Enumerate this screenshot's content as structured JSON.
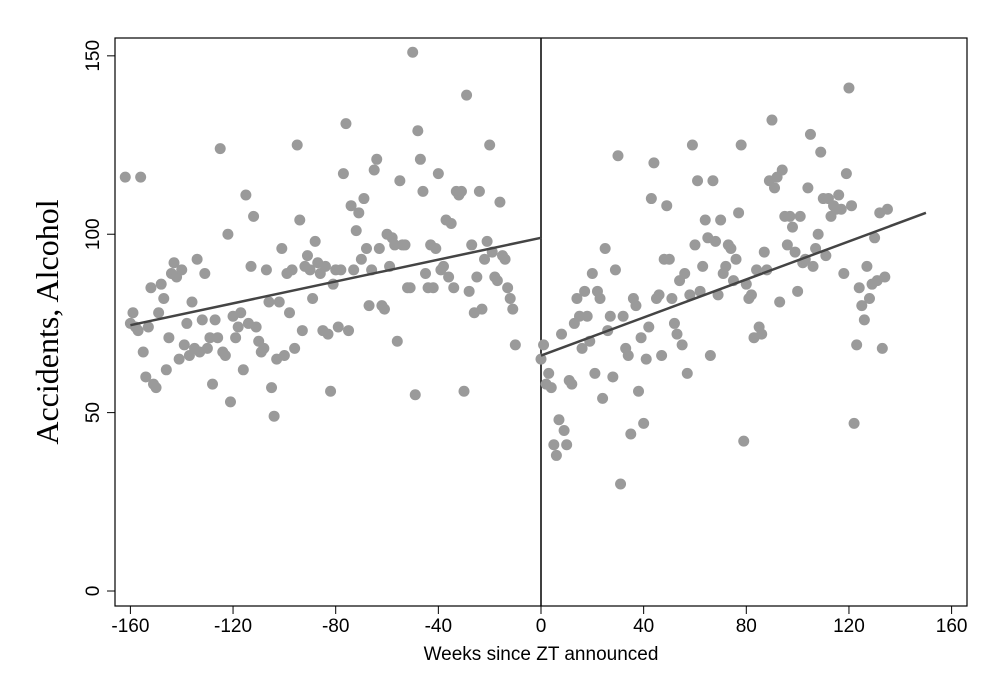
{
  "chart_data": {
    "type": "scatter",
    "x_label": "Weeks since ZT announced",
    "y_label": "Accidents, Alcohol",
    "xlim": [
      -166,
      166
    ],
    "ylim": [
      -4.2,
      155
    ],
    "xticks": [
      -160,
      -120,
      -80,
      -40,
      0,
      40,
      80,
      120,
      160
    ],
    "yticks": [
      0,
      50,
      100,
      150
    ],
    "vline": 0,
    "series": [
      {
        "type": "scatter",
        "color": "#9a9a9a",
        "x": [
          -162,
          -160,
          -159,
          -158,
          -157,
          -156,
          -155,
          -154,
          -153,
          -152,
          -151,
          -150,
          -149,
          -148,
          -147,
          -146,
          -145,
          -144,
          -143,
          -142,
          -141,
          -140,
          -139,
          -138,
          -137,
          -136,
          -135,
          -134,
          -133,
          -132,
          -131,
          -130,
          -129,
          -128,
          -127,
          -126,
          -125,
          -124,
          -123,
          -122,
          -121,
          -120,
          -119,
          -118,
          -117,
          -116,
          -115,
          -114,
          -113,
          -112,
          -111,
          -110,
          -109,
          -108,
          -107,
          -106,
          -105,
          -104,
          -103,
          -102,
          -101,
          -100,
          -99,
          -98,
          -97,
          -96,
          -95,
          -94,
          -93,
          -92,
          -91,
          -90,
          -89,
          -88,
          -87,
          -86,
          -85,
          -84,
          -83,
          -82,
          -81,
          -80,
          -79,
          -78,
          -77,
          -76,
          -75,
          -74,
          -73,
          -72,
          -71,
          -70,
          -69,
          -68,
          -67,
          -66,
          -65,
          -64,
          -63,
          -62,
          -61,
          -60,
          -59,
          -58,
          -57,
          -56,
          -55,
          -54,
          -53,
          -52,
          -51,
          -50,
          -49,
          -48,
          -47,
          -46,
          -45,
          -44,
          -43,
          -42,
          -41,
          -40,
          -39,
          -38,
          -37,
          -36,
          -35,
          -34,
          -33,
          -32,
          -31,
          -30,
          -29,
          -28,
          -27,
          -26,
          -25,
          -24,
          -23,
          -22,
          -21,
          -20,
          -19,
          -18,
          -17,
          -16,
          -15,
          -14,
          -13,
          -12,
          -11,
          -10,
          0,
          1,
          2,
          3,
          4,
          5,
          6,
          7,
          8,
          9,
          10,
          11,
          12,
          13,
          14,
          15,
          16,
          17,
          18,
          19,
          20,
          21,
          22,
          23,
          24,
          25,
          26,
          27,
          28,
          29,
          30,
          31,
          32,
          33,
          34,
          35,
          36,
          37,
          38,
          39,
          40,
          41,
          42,
          43,
          44,
          45,
          46,
          47,
          48,
          49,
          50,
          51,
          52,
          53,
          54,
          55,
          56,
          57,
          58,
          59,
          60,
          61,
          62,
          63,
          64,
          65,
          66,
          67,
          68,
          69,
          70,
          71,
          72,
          73,
          74,
          75,
          76,
          77,
          78,
          79,
          80,
          81,
          82,
          83,
          84,
          85,
          86,
          87,
          88,
          89,
          90,
          91,
          92,
          93,
          94,
          95,
          96,
          97,
          98,
          99,
          100,
          101,
          102,
          103,
          104,
          105,
          106,
          107,
          108,
          109,
          110,
          111,
          112,
          113,
          114,
          115,
          116,
          117,
          118,
          119,
          120,
          121,
          122,
          123,
          124,
          125,
          126,
          127,
          128,
          129,
          130,
          131,
          132,
          133,
          134,
          135
        ],
        "values": [
          116,
          75,
          78,
          74,
          73,
          116,
          67,
          60,
          74,
          85,
          58,
          57,
          78,
          86,
          82,
          62,
          71,
          89,
          92,
          88,
          65,
          90,
          69,
          75,
          66,
          81,
          68,
          93,
          67,
          76,
          89,
          68,
          71,
          58,
          76,
          71,
          124,
          67,
          66,
          100,
          53,
          77,
          71,
          74,
          78,
          62,
          111,
          75,
          91,
          105,
          74,
          70,
          67,
          68,
          90,
          81,
          57,
          49,
          65,
          81,
          96,
          66,
          89,
          78,
          90,
          68,
          125,
          104,
          73,
          91,
          94,
          90,
          82,
          98,
          92,
          89,
          73,
          91,
          72,
          56,
          86,
          90,
          74,
          90,
          117,
          131,
          73,
          108,
          90,
          101,
          106,
          93,
          110,
          96,
          80,
          90,
          118,
          121,
          96,
          80,
          79,
          100,
          91,
          99,
          97,
          70,
          115,
          97,
          97,
          85,
          85,
          151,
          55,
          129,
          121,
          112,
          89,
          85,
          97,
          85,
          96,
          117,
          90,
          91,
          104,
          88,
          103,
          85,
          112,
          111,
          112,
          56,
          139,
          84,
          97,
          78,
          88,
          112,
          79,
          93,
          98,
          125,
          95,
          88,
          87,
          109,
          94,
          93,
          85,
          82,
          79,
          69,
          65,
          69,
          58,
          61,
          57,
          41,
          38,
          48,
          72,
          45,
          41,
          59,
          58,
          75,
          82,
          77,
          68,
          84,
          77,
          70,
          89,
          61,
          84,
          82,
          54,
          96,
          73,
          77,
          60,
          90,
          122,
          30,
          77,
          68,
          66,
          44,
          82,
          80,
          56,
          71,
          47,
          65,
          74,
          110,
          120,
          82,
          83,
          66,
          93,
          108,
          93,
          82,
          75,
          72,
          87,
          69,
          89,
          61,
          83,
          125,
          97,
          115,
          84,
          91,
          104,
          99,
          66,
          115,
          98,
          83,
          104,
          89,
          91,
          97,
          96,
          87,
          93,
          106,
          125,
          42,
          86,
          82,
          83,
          71,
          90,
          74,
          72,
          95,
          90,
          115,
          132,
          113,
          116,
          81,
          118,
          105,
          97,
          105,
          102,
          95,
          84,
          105,
          92,
          93,
          113,
          128,
          91,
          96,
          100,
          123,
          110,
          94,
          110,
          105,
          108,
          107,
          111,
          107,
          89,
          117,
          141,
          108,
          47,
          69,
          85,
          80,
          76,
          91,
          82,
          86,
          99,
          87,
          106,
          68,
          88,
          107
        ]
      },
      {
        "type": "line",
        "color": "#444444",
        "x": [
          -160,
          0
        ],
        "values": [
          74.5,
          99
        ]
      },
      {
        "type": "line",
        "color": "#444444",
        "x": [
          0,
          150
        ],
        "values": [
          66,
          106
        ]
      }
    ]
  }
}
